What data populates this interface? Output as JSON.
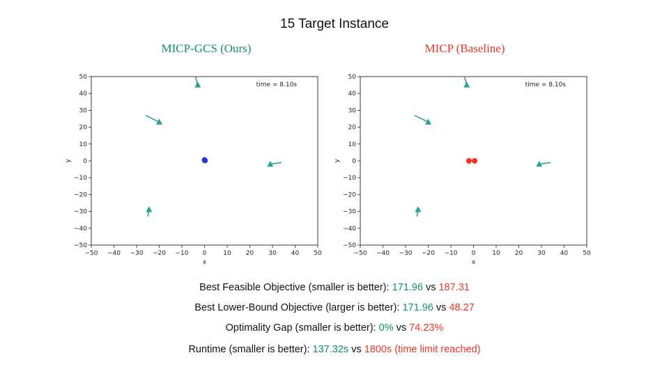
{
  "title": "15 Target Instance",
  "panels": {
    "ours": {
      "title": "MICP-GCS (Ours)",
      "time_label": "time = 8.10s"
    },
    "baseline": {
      "title": "MICP (Baseline)",
      "time_label": "time = 8.10s"
    }
  },
  "metrics": [
    {
      "label": "Best Feasible Objective (smaller is better): ",
      "ours": "171.96",
      "vs": " vs ",
      "baseline": "187.31"
    },
    {
      "label": "Best Lower-Bound Objective (larger is better): ",
      "ours": "171.96",
      "vs": " vs ",
      "baseline": "48.27"
    },
    {
      "label": "Optimality Gap (smaller is better): ",
      "ours": "0%",
      "vs": " vs ",
      "baseline": "74.23%"
    },
    {
      "label": "Runtime (smaller is better): ",
      "ours": "137.32s",
      "vs": " vs ",
      "baseline": "1800s (time limit reached)"
    }
  ],
  "colors": {
    "ours": "#0f8f6a",
    "baseline": "#e8352a",
    "target": "#2aa198",
    "agent_ours": "#2b35d6",
    "agent_baseline": "#f03224"
  },
  "chart_data": [
    {
      "type": "scatter",
      "title": "MICP-GCS (Ours)",
      "xlabel": "x",
      "ylabel": "y",
      "xlim": [
        -50,
        50
      ],
      "ylim": [
        -50,
        50
      ],
      "xticks": [
        -50,
        -40,
        -30,
        -20,
        -10,
        0,
        10,
        20,
        30,
        40,
        50
      ],
      "yticks": [
        -50,
        -40,
        -30,
        -20,
        -10,
        0,
        10,
        20,
        30,
        40,
        50
      ],
      "grid": false,
      "annotation": "time = 8.10s",
      "targets": [
        {
          "x": -3,
          "y": 45,
          "dx": -1,
          "dy": 5
        },
        {
          "x": -20,
          "y": 23,
          "dx": -6,
          "dy": 4
        },
        {
          "x": 29,
          "y": -2,
          "dx": 5,
          "dy": 1
        },
        {
          "x": -24.5,
          "y": -29,
          "dx": -0.5,
          "dy": -4
        }
      ],
      "agents": [
        {
          "x": 0,
          "y": 0.5
        },
        {
          "x": 0.2,
          "y": 0.2
        }
      ]
    },
    {
      "type": "scatter",
      "title": "MICP (Baseline)",
      "xlabel": "x",
      "ylabel": "y",
      "xlim": [
        -50,
        50
      ],
      "ylim": [
        -50,
        50
      ],
      "xticks": [
        -50,
        -40,
        -30,
        -20,
        -10,
        0,
        10,
        20,
        30,
        40,
        50
      ],
      "yticks": [
        -50,
        -40,
        -30,
        -20,
        -10,
        0,
        10,
        20,
        30,
        40,
        50
      ],
      "grid": false,
      "annotation": "time = 8.10s",
      "targets": [
        {
          "x": -3,
          "y": 45,
          "dx": -1,
          "dy": 5
        },
        {
          "x": -20,
          "y": 23,
          "dx": -6,
          "dy": 4
        },
        {
          "x": 29,
          "y": -2,
          "dx": 5,
          "dy": 1
        },
        {
          "x": -24.5,
          "y": -29,
          "dx": -0.5,
          "dy": -4
        }
      ],
      "agents": [
        {
          "x": -2,
          "y": 0
        },
        {
          "x": 0.5,
          "y": 0
        }
      ]
    }
  ]
}
